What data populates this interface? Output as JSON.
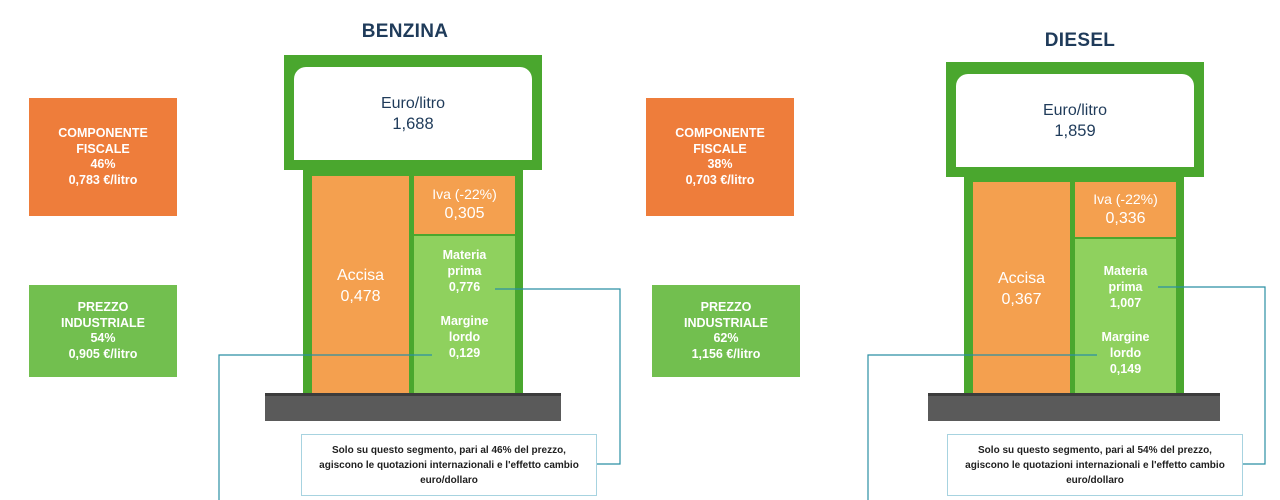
{
  "benzina": {
    "title": "BENZINA",
    "display": {
      "unit_label": "Euro/litro",
      "value": "1,688"
    },
    "components": {
      "accisa": {
        "label": "Accisa",
        "value": "0,478"
      },
      "iva": {
        "label": "Iva (-22%)",
        "value": "0,305"
      },
      "materia_prima": {
        "label_line1": "Materia",
        "label_line2": "prima",
        "value": "0,776"
      },
      "margine_lordo": {
        "label_line1": "Margine",
        "label_line2": "lordo",
        "value": "0,129"
      }
    },
    "componente_fiscale": {
      "line1": "COMPONENTE",
      "line2": "FISCALE",
      "percent": "46%",
      "value": "0,783 €/litro"
    },
    "prezzo_industriale": {
      "line1": "PREZZO",
      "line2": "INDUSTRIALE",
      "percent": "54%",
      "value": "0,905 €/litro"
    },
    "note": {
      "line1": "Solo su questo segmento, pari al 46% del prezzo,",
      "line2": "agiscono le quotazioni internazionali e l'effetto cambio",
      "line3": "euro/dollaro"
    }
  },
  "diesel": {
    "title": "DIESEL",
    "display": {
      "unit_label": "Euro/litro",
      "value": "1,859"
    },
    "components": {
      "accisa": {
        "label": "Accisa",
        "value": "0,367"
      },
      "iva": {
        "label": "Iva (-22%)",
        "value": "0,336"
      },
      "materia_prima": {
        "label_line1": "Materia",
        "label_line2": "prima",
        "value": "1,007"
      },
      "margine_lordo": {
        "label_line1": "Margine",
        "label_line2": "lordo",
        "value": "0,149"
      }
    },
    "componente_fiscale": {
      "line1": "COMPONENTE",
      "line2": "FISCALE",
      "percent": "38%",
      "value": "0,703 €/litro"
    },
    "prezzo_industriale": {
      "line1": "PREZZO",
      "line2": "INDUSTRIALE",
      "percent": "62%",
      "value": "1,156 €/litro"
    },
    "note": {
      "line1": "Solo su questo segmento, pari al 54% del prezzo,",
      "line2": "agiscono le quotazioni internazionali e l'effetto cambio",
      "line3": "euro/dollaro"
    }
  },
  "colors": {
    "fiscal_orange": "#ee7d3b",
    "industrial_green": "#72bf4f",
    "pump_orange": "#f4a04f",
    "pump_green": "#8fd15e",
    "frame_green": "#4aa72e",
    "title_navy": "#1f3b5a",
    "connector_teal": "#2b8fa3"
  }
}
